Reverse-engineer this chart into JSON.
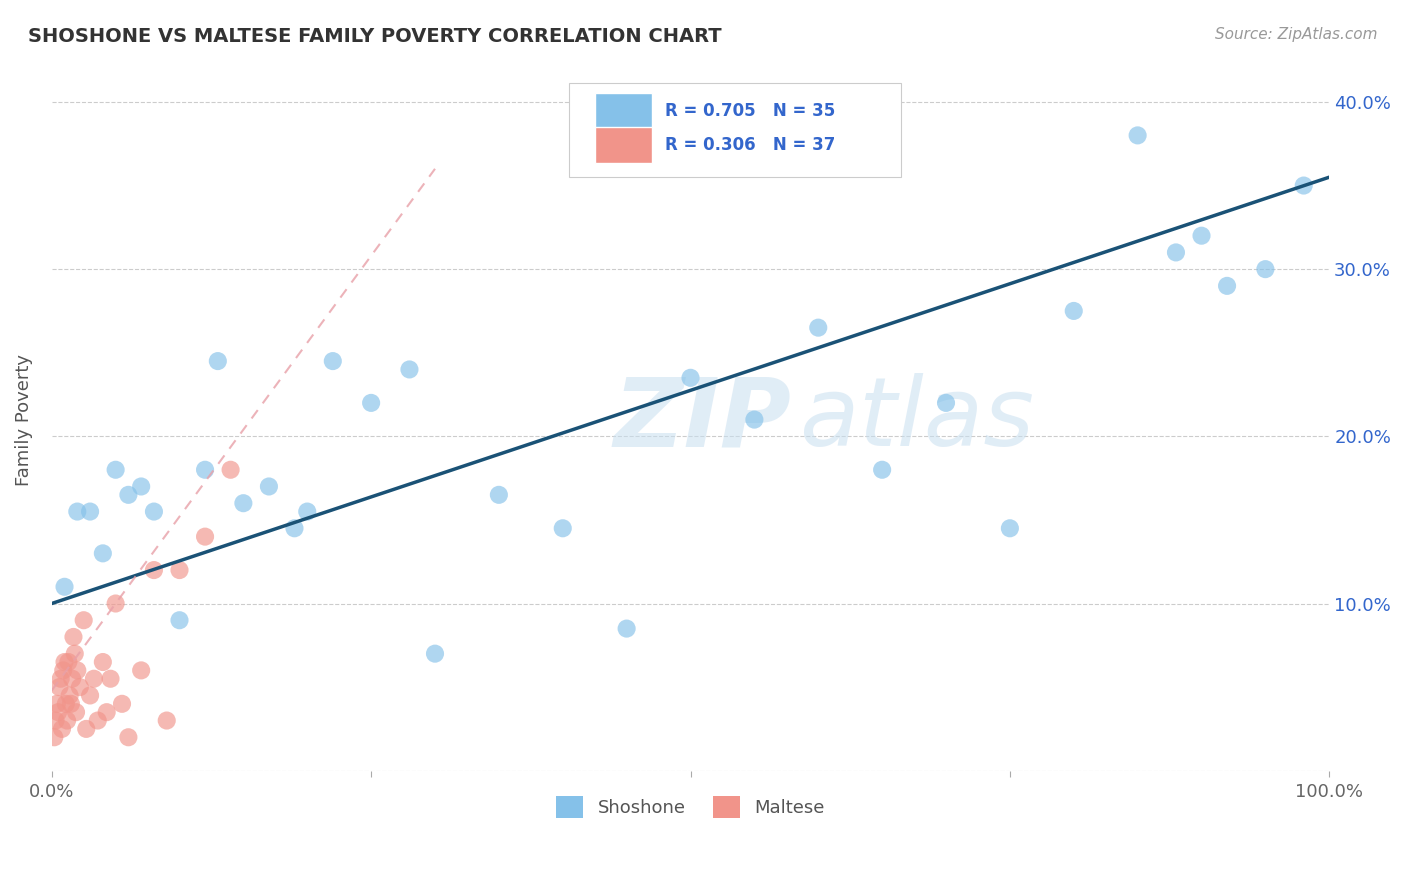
{
  "title": "SHOSHONE VS MALTESE FAMILY POVERTY CORRELATION CHART",
  "source": "Source: ZipAtlas.com",
  "ylabel": "Family Poverty",
  "xlim": [
    0,
    1.0
  ],
  "ylim": [
    0,
    0.42
  ],
  "ytick_positions": [
    0.0,
    0.1,
    0.2,
    0.3,
    0.4
  ],
  "ytick_labels": [
    "",
    "10.0%",
    "20.0%",
    "30.0%",
    "40.0%"
  ],
  "shoshone_color": "#85C1E9",
  "maltese_color": "#F1948A",
  "trendline_blue": "#1A5276",
  "trendline_pink": "#E8A0A8",
  "R_shoshone": 0.705,
  "N_shoshone": 35,
  "R_maltese": 0.306,
  "N_maltese": 37,
  "shoshone_x": [
    0.01,
    0.02,
    0.03,
    0.04,
    0.05,
    0.06,
    0.07,
    0.08,
    0.1,
    0.12,
    0.13,
    0.15,
    0.17,
    0.19,
    0.2,
    0.22,
    0.25,
    0.28,
    0.3,
    0.35,
    0.4,
    0.45,
    0.5,
    0.55,
    0.6,
    0.65,
    0.7,
    0.75,
    0.8,
    0.85,
    0.88,
    0.9,
    0.92,
    0.95,
    0.98
  ],
  "shoshone_y": [
    0.11,
    0.155,
    0.155,
    0.13,
    0.18,
    0.165,
    0.17,
    0.155,
    0.09,
    0.18,
    0.245,
    0.16,
    0.17,
    0.145,
    0.155,
    0.245,
    0.22,
    0.24,
    0.07,
    0.165,
    0.145,
    0.085,
    0.235,
    0.21,
    0.265,
    0.18,
    0.22,
    0.145,
    0.275,
    0.38,
    0.31,
    0.32,
    0.29,
    0.3,
    0.35
  ],
  "maltese_x": [
    0.002,
    0.003,
    0.004,
    0.005,
    0.006,
    0.007,
    0.008,
    0.009,
    0.01,
    0.011,
    0.012,
    0.013,
    0.014,
    0.015,
    0.016,
    0.017,
    0.018,
    0.019,
    0.02,
    0.022,
    0.025,
    0.027,
    0.03,
    0.033,
    0.036,
    0.04,
    0.043,
    0.046,
    0.05,
    0.055,
    0.06,
    0.07,
    0.08,
    0.09,
    0.1,
    0.12,
    0.14
  ],
  "maltese_y": [
    0.02,
    0.03,
    0.04,
    0.035,
    0.05,
    0.055,
    0.025,
    0.06,
    0.065,
    0.04,
    0.03,
    0.065,
    0.045,
    0.04,
    0.055,
    0.08,
    0.07,
    0.035,
    0.06,
    0.05,
    0.09,
    0.025,
    0.045,
    0.055,
    0.03,
    0.065,
    0.035,
    0.055,
    0.1,
    0.04,
    0.02,
    0.06,
    0.12,
    0.03,
    0.12,
    0.14,
    0.18
  ],
  "trendline_shoshone_x0": 0.0,
  "trendline_shoshone_y0": 0.1,
  "trendline_shoshone_x1": 1.0,
  "trendline_shoshone_y1": 0.355,
  "trendline_maltese_x0": 0.0,
  "trendline_maltese_y0": 0.048,
  "trendline_maltese_x1": 0.3,
  "trendline_maltese_y1": 0.36
}
